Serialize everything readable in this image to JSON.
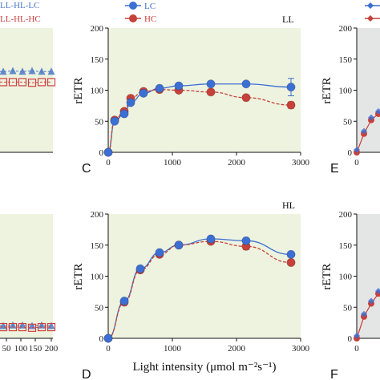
{
  "legend": {
    "left_items": [
      {
        "label": "LL-HL-LC",
        "color": "#4a78c8"
      },
      {
        "label": "LL-HL-HC",
        "color": "#d04040"
      }
    ],
    "center_items": [
      {
        "label": "LC",
        "color": "#3b6fd4"
      },
      {
        "label": "HC",
        "color": "#c8403a"
      }
    ]
  },
  "colors": {
    "lc": "#3b6fd4",
    "hc": "#c8403a",
    "plot_bg_green": "#eef3df",
    "plot_bg_gray": "#e4e6e5"
  },
  "chart_data": [
    {
      "panel": "C",
      "condition_label": "LL",
      "type": "line",
      "ylabel": "rETR",
      "xlabel": "",
      "xlim": [
        0,
        3000
      ],
      "ylim": [
        0,
        200
      ],
      "xticks": [
        "0",
        "1000",
        "2000",
        "3000"
      ],
      "yticks": [
        "0",
        "50",
        "100",
        "150",
        "200"
      ],
      "x": [
        0,
        100,
        250,
        350,
        550,
        800,
        1100,
        1600,
        2150,
        2850
      ],
      "series": [
        {
          "name": "LC",
          "values": [
            0,
            50,
            62,
            80,
            95,
            103,
            107,
            110,
            110,
            105
          ],
          "err": [
            0,
            2,
            2,
            2,
            2,
            2,
            3,
            3,
            3,
            14
          ]
        },
        {
          "name": "HC",
          "values": [
            0,
            52,
            66,
            87,
            98,
            101,
            100,
            97,
            88,
            76
          ],
          "err": [
            0,
            2,
            2,
            2,
            2,
            2,
            3,
            3,
            3,
            5
          ]
        }
      ],
      "grid": false
    },
    {
      "panel": "D",
      "condition_label": "HL",
      "type": "line",
      "ylabel": "rETR",
      "xlabel": "Light intensity (μmol m⁻²s⁻¹)",
      "xlim": [
        0,
        3000
      ],
      "ylim": [
        0,
        200
      ],
      "xticks": [
        "0",
        "1000",
        "2000",
        "3000"
      ],
      "yticks": [
        "0",
        "50",
        "100",
        "150",
        "200"
      ],
      "x": [
        0,
        250,
        500,
        800,
        1100,
        1600,
        2150,
        2850
      ],
      "series": [
        {
          "name": "LC",
          "values": [
            0,
            60,
            112,
            138,
            150,
            160,
            157,
            135
          ],
          "err": [
            0,
            2,
            3,
            3,
            3,
            3,
            3,
            4
          ]
        },
        {
          "name": "HC",
          "values": [
            0,
            58,
            110,
            135,
            150,
            156,
            148,
            122
          ],
          "err": [
            0,
            2,
            3,
            3,
            3,
            3,
            5,
            4
          ]
        }
      ],
      "grid": false
    },
    {
      "panel": "left-top-partial",
      "type": "line",
      "xlim": [
        0,
        200
      ],
      "series": [
        {
          "name": "LL-HL-LC",
          "values": [
            130,
            131,
            130,
            131,
            130,
            130
          ]
        },
        {
          "name": "LL-HL-HC",
          "values": [
            113,
            113,
            113,
            112,
            113,
            113
          ]
        }
      ]
    },
    {
      "panel": "left-bottom-partial",
      "type": "line",
      "xlim": [
        0,
        200
      ],
      "xticks": [
        "50",
        "100",
        "150",
        "200"
      ],
      "series": [
        {
          "name": "LL-HL-LC",
          "values": [
            20,
            21,
            21,
            20,
            21,
            20
          ]
        },
        {
          "name": "LL-HL-HC",
          "values": [
            18,
            18,
            18,
            17,
            18,
            18
          ]
        }
      ]
    },
    {
      "panel": "E",
      "type": "line",
      "ylabel": "rETR",
      "xlim": [
        0,
        3000
      ],
      "ylim": [
        0,
        200
      ],
      "yticks": [
        "0",
        "50",
        "100",
        "150",
        "200"
      ],
      "xticks": [
        "0"
      ],
      "x": [
        0,
        50,
        100,
        150
      ],
      "series": [
        {
          "name": "",
          "values": [
            0,
            30,
            52,
            62
          ]
        }
      ]
    },
    {
      "panel": "F",
      "type": "line",
      "ylabel": "rETR",
      "xlim": [
        0,
        3000
      ],
      "ylim": [
        0,
        200
      ],
      "yticks": [
        "0",
        "50",
        "100",
        "150",
        "200"
      ],
      "xticks": [
        "0"
      ],
      "x": [
        0,
        50,
        100,
        150
      ],
      "series": [
        {
          "name": "",
          "values": [
            0,
            35,
            56,
            72
          ]
        }
      ]
    }
  ]
}
